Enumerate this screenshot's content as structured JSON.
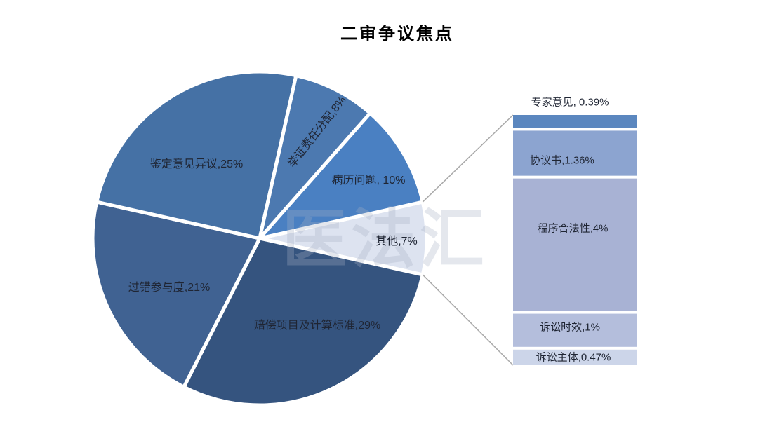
{
  "title": "二审争议焦点",
  "watermark": {
    "text": "医法汇"
  },
  "chart_data": {
    "type": "pie",
    "subtype": "pie-of-pie",
    "title": "二审争议焦点",
    "unit": "%",
    "background": "#ffffff",
    "label_color": "#1f2533",
    "leader_line_color": "#a8a8a8",
    "slice_border_color": "#ffffff",
    "pie": {
      "start_angle_deg": 77.4,
      "slices": [
        {
          "name": "其他",
          "value": 7,
          "label": "其他,7%",
          "color": "#dde3f0"
        },
        {
          "name": "赔偿项目及计算标准",
          "value": 29,
          "label": "赔偿项目及计算标准,29%",
          "color": "#35547f"
        },
        {
          "name": "过错参与度",
          "value": 21,
          "label": "过错参与度,21%",
          "color": "#406292"
        },
        {
          "name": "鉴定意见异议",
          "value": 25,
          "label": "鉴定意见异议,25%",
          "color": "#4571a5"
        },
        {
          "name": "举证责任分配",
          "value": 8,
          "label": "举证责任分配,8%",
          "color": "#4c79b0"
        },
        {
          "name": "病历问题",
          "value": 10,
          "label": "病历问题, 10%",
          "color": "#4a80c2"
        }
      ]
    },
    "bar": {
      "description": "其他 breakdown",
      "segments": [
        {
          "name": "专家意见",
          "value": 0.39,
          "label": "专家意见, 0.39%",
          "color": "#5b87bf"
        },
        {
          "name": "协议书",
          "value": 1.36,
          "label": "协议书,1.36%",
          "color": "#8ca4d0"
        },
        {
          "name": "程序合法性",
          "value": 4,
          "label": "程序合法性,4%",
          "color": "#a8b2d4"
        },
        {
          "name": "诉讼时效",
          "value": 1,
          "label": "诉讼时效,1%",
          "color": "#b4bedc"
        },
        {
          "name": "诉讼主体",
          "value": 0.47,
          "label": "诉讼主体,0.47%",
          "color": "#ccd5e9"
        }
      ]
    }
  }
}
